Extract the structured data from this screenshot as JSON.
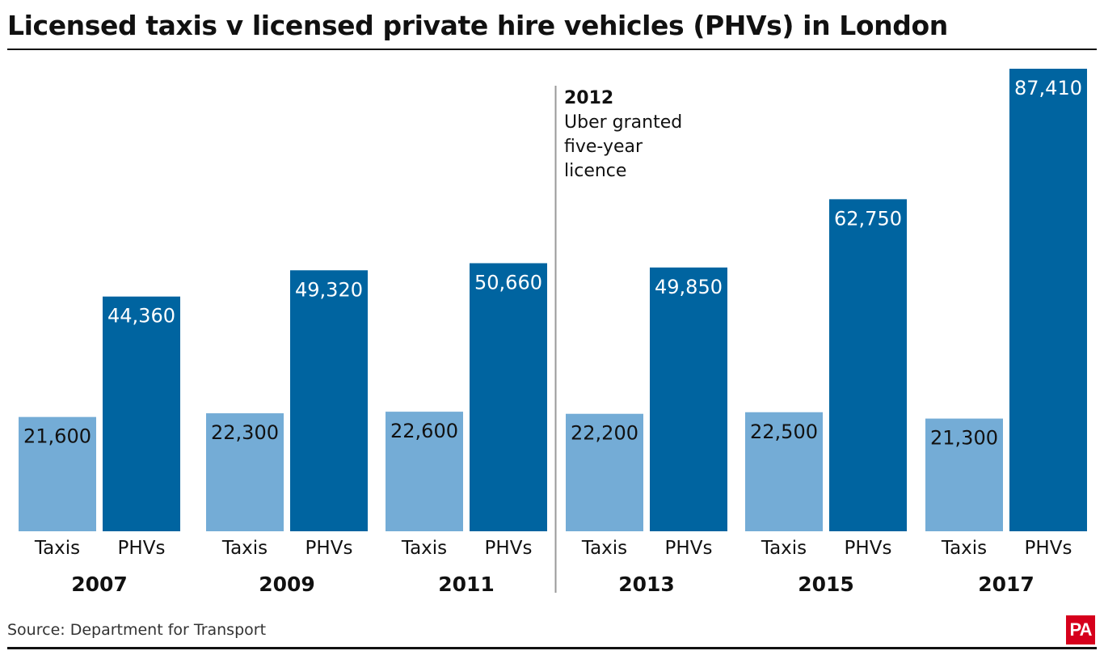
{
  "title": "Licensed taxis v licensed private hire vehicles (PHVs) in London",
  "source": "Source: Department for Transport",
  "logo_text": "PA",
  "colors": {
    "taxis": "#74acd6",
    "phvs": "#0064a0",
    "text": "#111111",
    "divider": "#999999"
  },
  "chart_data": {
    "type": "bar",
    "title": "Licensed taxis v licensed private hire vehicles (PHVs) in London",
    "categories": [
      "2007",
      "2009",
      "2011",
      "2013",
      "2015",
      "2017"
    ],
    "series": [
      {
        "name": "Taxis",
        "values": [
          21600,
          22300,
          22600,
          22200,
          22500,
          21300
        ],
        "labels": [
          "21,600",
          "22,300",
          "22,600",
          "22,200",
          "22,500",
          "21,300"
        ]
      },
      {
        "name": "PHVs",
        "values": [
          44360,
          49320,
          50660,
          49850,
          62750,
          87410
        ],
        "labels": [
          "44,360",
          "49,320",
          "50,660",
          "49,850",
          "62,750",
          "87,410"
        ]
      }
    ],
    "ylim": [
      0,
      87410
    ],
    "grid": false,
    "annotation": {
      "year": "2012",
      "lines": [
        "Uber granted",
        "five-year",
        "licence"
      ]
    }
  }
}
